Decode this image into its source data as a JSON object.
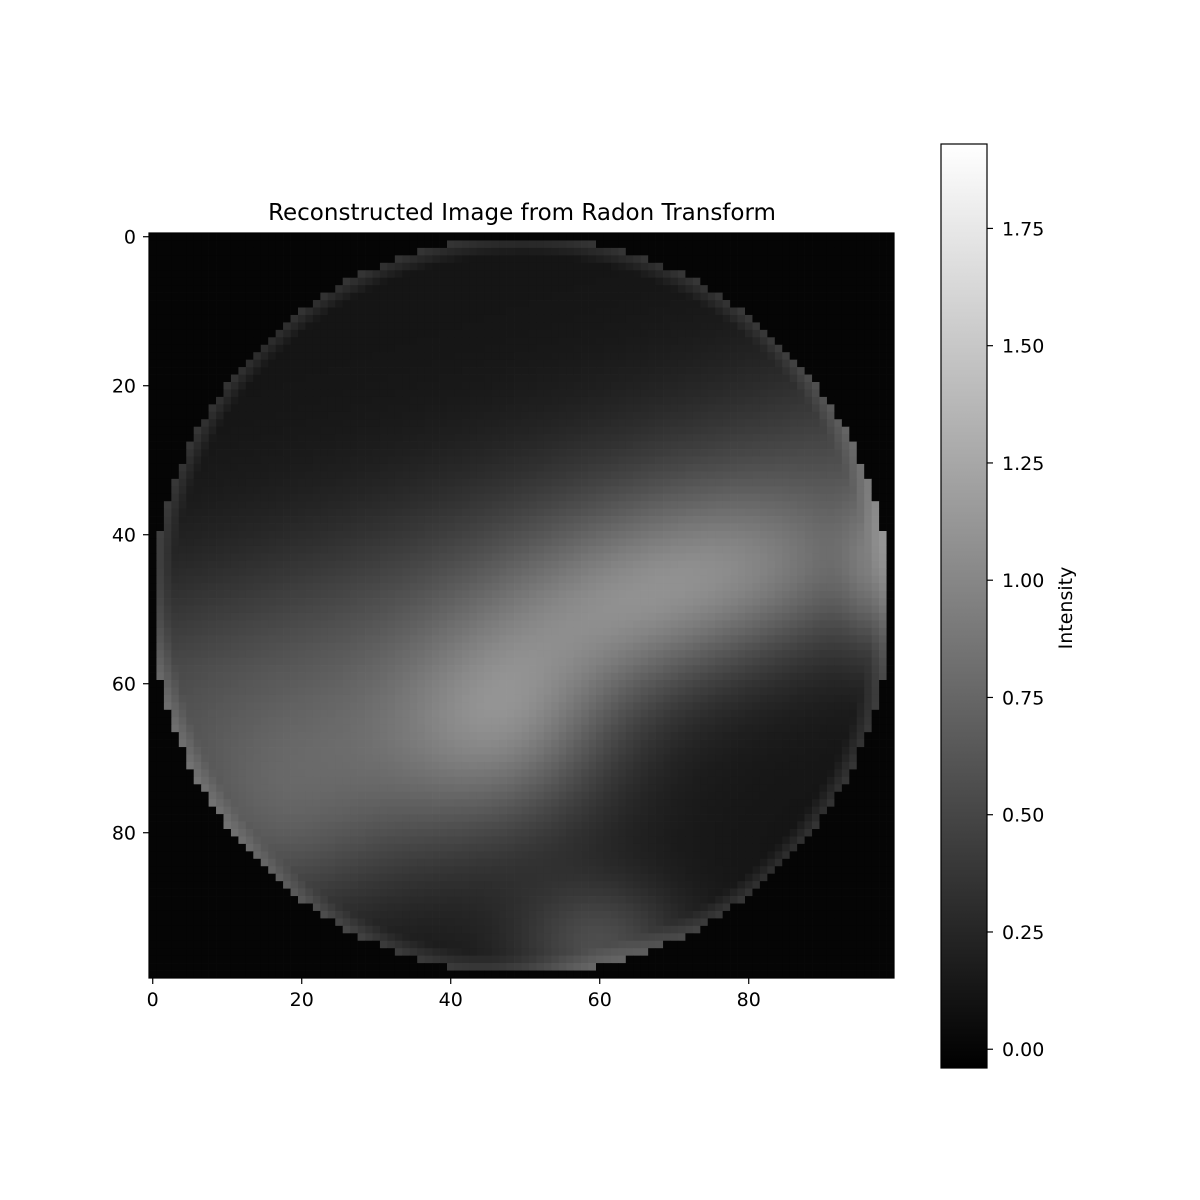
{
  "chart_data": {
    "type": "heatmap",
    "title": "Reconstructed Image from Radon Transform",
    "xlabel": "",
    "ylabel": "",
    "image_size": [
      100,
      100
    ],
    "x_ticks": [
      0,
      20,
      40,
      60,
      80
    ],
    "y_ticks": [
      0,
      20,
      40,
      60,
      80
    ],
    "xlim": [
      -0.5,
      99.5
    ],
    "ylim": [
      99.5,
      -0.5
    ],
    "colormap": "gray",
    "grid": false,
    "colorbar": {
      "label": "Intensity",
      "vmin": -0.04,
      "vmax": 1.93,
      "ticks": [
        0.0,
        0.25,
        0.5,
        0.75,
        1.0,
        1.25,
        1.5,
        1.75
      ],
      "tick_labels": [
        "0.00",
        "0.25",
        "0.50",
        "0.75",
        "1.00",
        "1.25",
        "1.50",
        "1.75"
      ]
    },
    "mask": {
      "type": "circle",
      "center": [
        49.5,
        49.5
      ],
      "radius": 49.5,
      "outside_value": 0.0
    },
    "background_value": 0.12,
    "blobs": [
      {
        "cx": 35,
        "cy": 72,
        "sx": 16,
        "sy": 11,
        "amp": 0.42
      },
      {
        "cx": 48,
        "cy": 64,
        "sx": 10,
        "sy": 9,
        "amp": 0.5
      },
      {
        "cx": 62,
        "cy": 52,
        "sx": 12,
        "sy": 8,
        "amp": 0.4
      },
      {
        "cx": 80,
        "cy": 45,
        "sx": 14,
        "sy": 8,
        "amp": 0.48
      },
      {
        "cx": 60,
        "cy": 95,
        "sx": 8,
        "sy": 6,
        "amp": 0.42
      },
      {
        "cx": 15,
        "cy": 80,
        "sx": 10,
        "sy": 10,
        "amp": 0.3
      },
      {
        "cx": 97,
        "cy": 45,
        "sx": 3,
        "sy": 8,
        "amp": 0.35
      }
    ],
    "bright_band": {
      "slope": -0.33,
      "intercept": 63,
      "half_width": 13,
      "amp": 0.38
    }
  }
}
